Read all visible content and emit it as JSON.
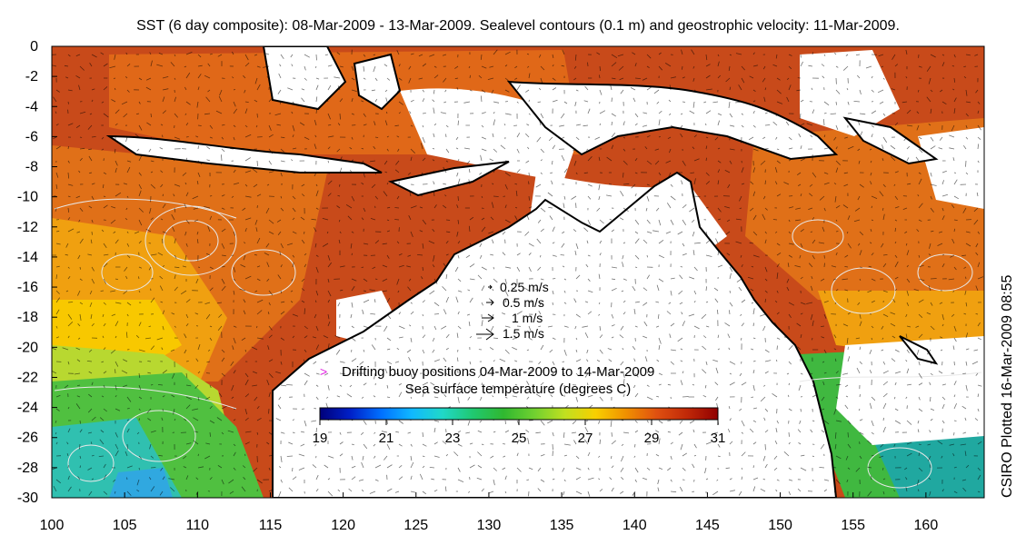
{
  "title": "SST (6 day composite): 08-Mar-2009 - 13-Mar-2009. Sealevel contours (0.1 m) and geostrophic velocity: 11-Mar-2009.",
  "credit": "CSIRO Plotted 16-Mar-2009 08:55",
  "axes": {
    "x_ticks": [
      "100",
      "105",
      "110",
      "115",
      "120",
      "125",
      "130",
      "135",
      "140",
      "145",
      "150",
      "155",
      "160"
    ],
    "y_ticks": [
      "0",
      "-2",
      "-4",
      "-6",
      "-8",
      "-10",
      "-12",
      "-14",
      "-16",
      "-18",
      "-20",
      "-22",
      "-24",
      "-26",
      "-28",
      "-30"
    ],
    "lon_range": [
      100,
      164
    ],
    "lat_range": [
      -30,
      0
    ]
  },
  "velocity_legend": [
    "0.25 m/s",
    "0.5 m/s",
    "1 m/s",
    "1.5 m/s"
  ],
  "buoy_legend": {
    "marker": ">",
    "label": "Drifting buoy positions 04-Mar-2009 to 14-Mar-2009",
    "marker_color": "#e020e0"
  },
  "colorbar": {
    "title": "Sea surface temperature (degrees C)",
    "ticks": [
      "19",
      "21",
      "23",
      "25",
      "27",
      "29",
      "31"
    ],
    "range": [
      19,
      31
    ],
    "colors": [
      "#00007a",
      "#0020c8",
      "#0070ff",
      "#10b8ff",
      "#20d8c8",
      "#20c870",
      "#30b830",
      "#70d030",
      "#c0e020",
      "#f8d000",
      "#f09000",
      "#e05010",
      "#c02808",
      "#900000"
    ]
  },
  "colors": {
    "land": "#ffffff",
    "warm_sea": "#cc4a1a",
    "cloud_gap": "#ffffff",
    "contour": "#e8e8e8",
    "arrow": "#000000"
  }
}
